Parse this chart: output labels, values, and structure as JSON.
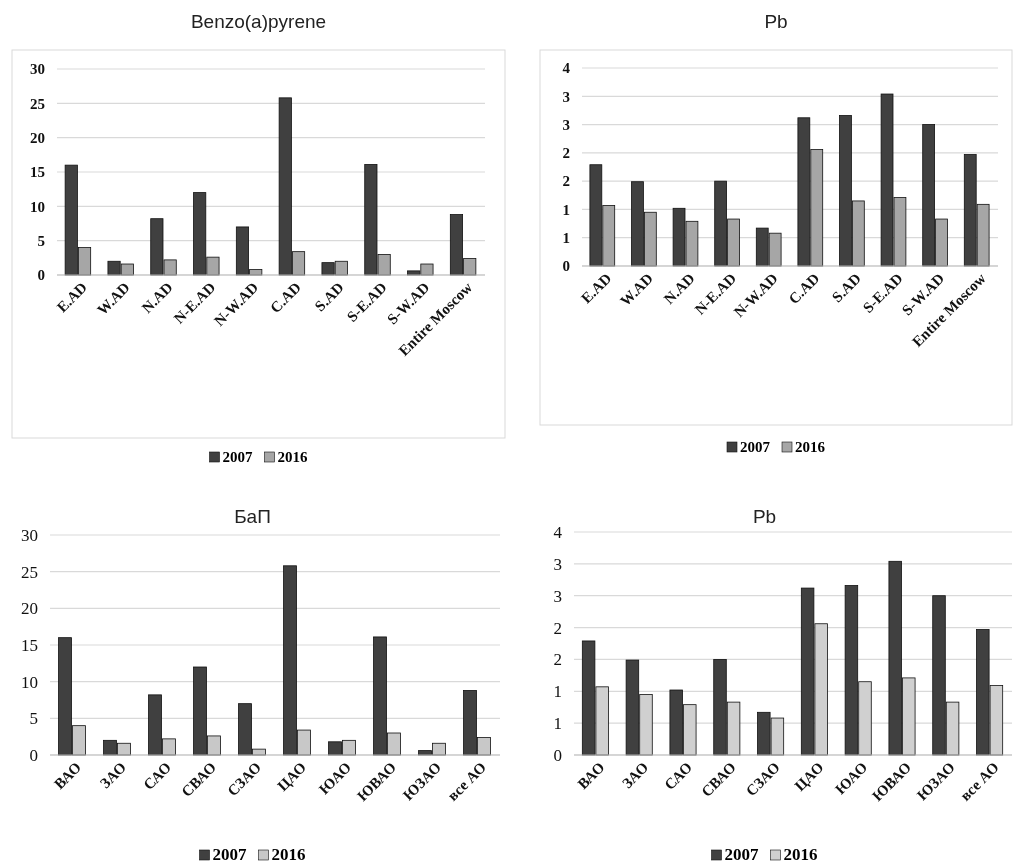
{
  "chart_data": [
    {
      "type": "bar",
      "title": "Benzo(a)pyrene",
      "categories": [
        "E.AD",
        "W.AD",
        "N.AD",
        "N-E.AD",
        "N-W.AD",
        "C.AD",
        "S.AD",
        "S-E.AD",
        "S-W.AD",
        "Entire Moscow"
      ],
      "series": [
        {
          "name": "2007",
          "color": "#404040",
          "values": [
            16,
            2,
            8.2,
            12,
            7,
            25.8,
            1.8,
            16.1,
            0.6,
            8.8
          ]
        },
        {
          "name": "2016",
          "color": "#a6a6a6",
          "values": [
            4,
            1.6,
            2.2,
            2.6,
            0.8,
            3.4,
            2,
            3,
            1.6,
            2.4
          ]
        }
      ],
      "ylim": [
        0,
        30
      ],
      "yticks": [
        0,
        5,
        10,
        15,
        20,
        25,
        30
      ],
      "grid": "y",
      "legend": "bottom"
    },
    {
      "type": "bar",
      "title": "Pb",
      "categories": [
        "E.AD",
        "W.AD",
        "N.AD",
        "N-E.AD",
        "N-W.AD",
        "C.AD",
        "S.AD",
        "S-E.AD",
        "S-W.AD",
        "Entire Moscow"
      ],
      "series": [
        {
          "name": "2007",
          "color": "#404040",
          "values": [
            1.79,
            1.49,
            1.02,
            1.5,
            0.67,
            2.62,
            2.66,
            3.04,
            2.5,
            1.97
          ]
        },
        {
          "name": "2016",
          "color": "#a6a6a6",
          "values": [
            1.07,
            0.95,
            0.79,
            0.83,
            0.58,
            2.06,
            1.15,
            1.21,
            0.83,
            1.09
          ]
        }
      ],
      "ylim": [
        0,
        3.5
      ],
      "yticks": [
        0,
        {
          "value": 0.5,
          "label": "1"
        },
        1,
        {
          "value": 1.5,
          "label": "2"
        },
        2,
        {
          "value": 2.5,
          "label": "3"
        },
        3,
        {
          "value": 3.5,
          "label": "4"
        }
      ],
      "grid": "y",
      "legend": "bottom"
    },
    {
      "type": "bar",
      "title": "БаП",
      "categories": [
        "ВАО",
        "ЗАО",
        "САО",
        "СВАО",
        "СЗАО",
        "ЦАО",
        "ЮАО",
        "ЮВАО",
        "ЮЗАО",
        "все АО"
      ],
      "series": [
        {
          "name": "2007",
          "color": "#404040",
          "values": [
            16,
            2,
            8.2,
            12,
            7,
            25.8,
            1.8,
            16.1,
            0.6,
            8.8
          ]
        },
        {
          "name": "2016",
          "color": "#c8c8c8",
          "values": [
            4,
            1.6,
            2.2,
            2.6,
            0.8,
            3.4,
            2,
            3,
            1.6,
            2.4
          ]
        }
      ],
      "ylim": [
        0,
        30
      ],
      "yticks": [
        0,
        5,
        10,
        15,
        20,
        25,
        30
      ],
      "grid": "y",
      "legend": "bottom"
    },
    {
      "type": "bar",
      "title": "Pb",
      "categories": [
        "ВАО",
        "ЗАО",
        "САО",
        "СВАО",
        "СЗАО",
        "ЦАО",
        "ЮАО",
        "ЮВАО",
        "ЮЗАО",
        "все АО"
      ],
      "series": [
        {
          "name": "2007",
          "color": "#404040",
          "values": [
            1.79,
            1.49,
            1.02,
            1.5,
            0.67,
            2.62,
            2.66,
            3.04,
            2.5,
            1.97
          ]
        },
        {
          "name": "2016",
          "color": "#d0d0d0",
          "values": [
            1.07,
            0.95,
            0.79,
            0.83,
            0.58,
            2.06,
            1.15,
            1.21,
            0.83,
            1.09
          ]
        }
      ],
      "ylim": [
        0,
        3.5
      ],
      "yticks": [
        0,
        {
          "value": 0.5,
          "label": "1"
        },
        1,
        {
          "value": 1.5,
          "label": "2"
        },
        2,
        {
          "value": 2.5,
          "label": "3"
        },
        3,
        {
          "value": 3.5,
          "label": "4"
        }
      ],
      "grid": "y",
      "legend": "bottom"
    }
  ]
}
